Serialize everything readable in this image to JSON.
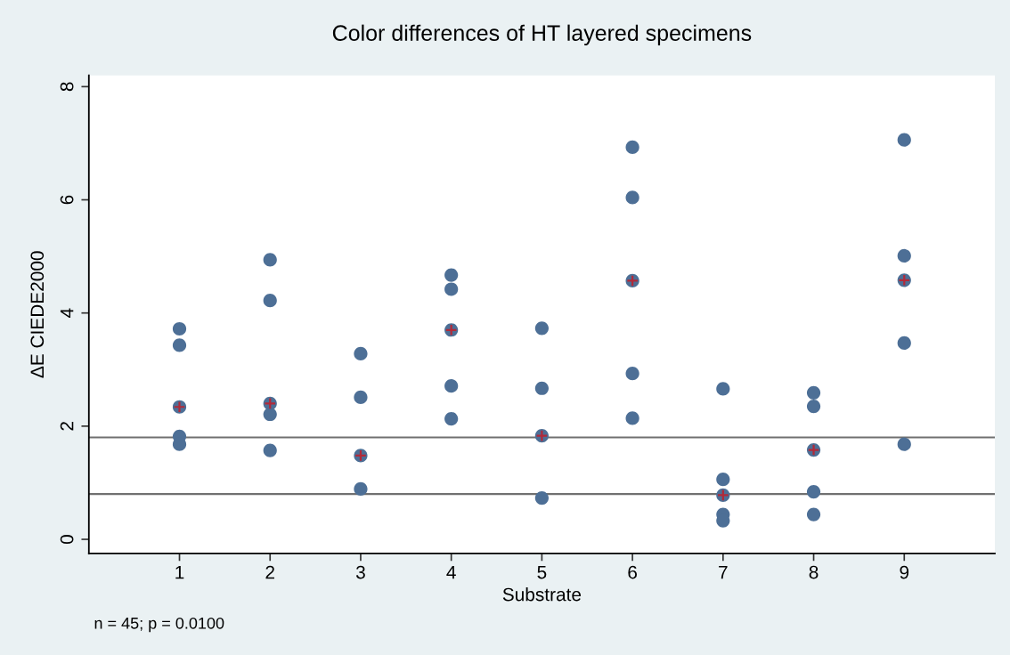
{
  "chart_data": {
    "type": "scatter",
    "title": "Color differences of HT layered specimens",
    "xlabel": "Substrate",
    "ylabel": "ΔE CIEDE2000",
    "series": [
      {
        "color": "#4d6f96",
        "marker": "circle",
        "x": [
          1,
          1,
          1,
          1,
          1,
          2,
          2,
          2,
          2,
          2,
          3,
          3,
          3,
          3,
          4,
          4,
          4,
          4,
          4,
          5,
          5,
          5,
          5,
          6,
          6,
          6,
          6,
          6,
          7,
          7,
          7,
          7,
          7,
          8,
          8,
          8,
          8,
          8,
          9,
          9,
          9,
          9,
          9
        ],
        "values": [
          3.72,
          3.43,
          2.34,
          1.82,
          1.68,
          4.94,
          4.22,
          2.4,
          2.21,
          1.57,
          3.28,
          2.51,
          1.48,
          0.89,
          4.67,
          4.42,
          3.7,
          2.71,
          2.13,
          3.73,
          2.67,
          1.83,
          0.73,
          6.93,
          6.04,
          4.57,
          2.93,
          2.14,
          2.66,
          1.06,
          0.78,
          0.44,
          0.33,
          2.59,
          2.35,
          1.58,
          0.84,
          0.44,
          7.06,
          5.01,
          4.58,
          3.47,
          1.68
        ]
      },
      {
        "color": "#b02a3a",
        "marker": "cross",
        "x": [
          1,
          2,
          3,
          4,
          5,
          6,
          7,
          8,
          9
        ],
        "values": [
          2.34,
          2.4,
          1.48,
          3.7,
          1.83,
          4.57,
          0.78,
          1.58,
          4.58
        ]
      }
    ],
    "xlim": [
      0,
      10
    ],
    "xticks": [
      1,
      2,
      3,
      4,
      5,
      6,
      7,
      8,
      9
    ],
    "ylim": [
      -0.25,
      8.2
    ],
    "yticks": [
      0,
      2,
      4,
      6,
      8
    ],
    "ref_lines": [
      {
        "axis": "y",
        "value": 1.8,
        "color": "#707070"
      },
      {
        "axis": "y",
        "value": 0.8,
        "color": "#707070"
      }
    ],
    "annotations": [
      "n = 45; p = 0.0100"
    ],
    "grid": false,
    "legend": false
  }
}
